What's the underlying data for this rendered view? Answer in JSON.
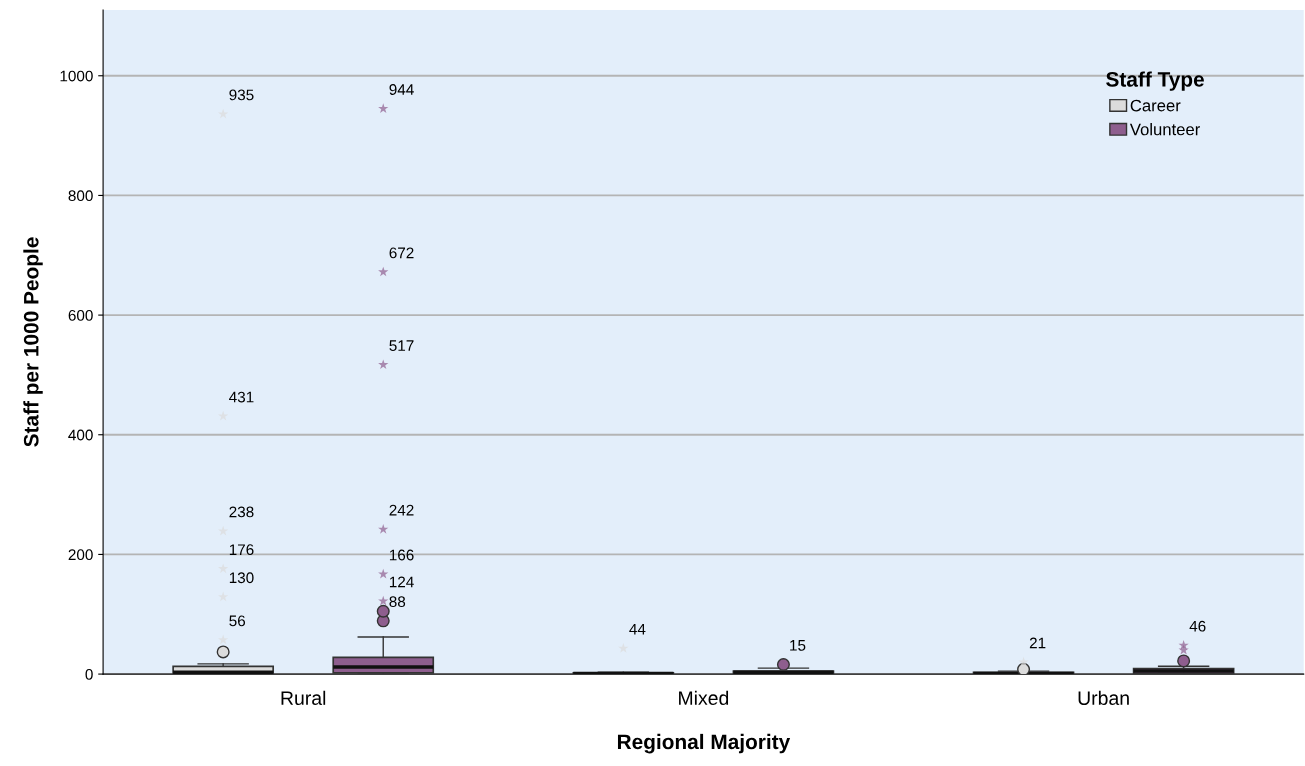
{
  "chart_data": {
    "type": "box",
    "xlabel": "Regional Majority",
    "ylabel": "Staff per 1000 People",
    "legend_title": "Staff Type",
    "categories": [
      "Rural",
      "Mixed",
      "Urban"
    ],
    "ylim": [
      0,
      1110
    ],
    "yticks": [
      0,
      200,
      400,
      600,
      800,
      1000
    ],
    "grid": "y",
    "legend": "top right",
    "series": [
      {
        "name": "Career",
        "color": "#dcdcdc",
        "boxes": [
          {
            "q1": 1,
            "median": 3,
            "q3": 13,
            "high": 17,
            "outliers": [
              37,
              57,
              129,
              176,
              239,
              431,
              936
            ]
          },
          {
            "q1": 0,
            "median": 1,
            "q3": 2,
            "high": 3,
            "outliers": [
              43
            ]
          },
          {
            "q1": 0,
            "median": 1,
            "q3": 3,
            "high": 5,
            "outliers": [
              8,
              20
            ]
          }
        ]
      },
      {
        "name": "Volunteer",
        "color": "#8e5e8e",
        "boxes": [
          {
            "q1": 2,
            "median": 12,
            "q3": 28,
            "high": 62,
            "outliers": [
              89,
              105,
              122,
              167,
              242,
              517,
              672,
              945
            ]
          },
          {
            "q1": 1,
            "median": 3,
            "q3": 5,
            "high": 10,
            "outliers": [
              16
            ]
          },
          {
            "q1": 1,
            "median": 5,
            "q3": 9,
            "high": 13,
            "outliers": [
              22,
              40,
              48
            ]
          }
        ]
      }
    ],
    "annotations": [
      "935",
      "431",
      "238",
      "176",
      "130",
      "56",
      "44",
      "21",
      "944",
      "672",
      "517",
      "242",
      "166",
      "124",
      "46",
      "88",
      "15"
    ]
  }
}
